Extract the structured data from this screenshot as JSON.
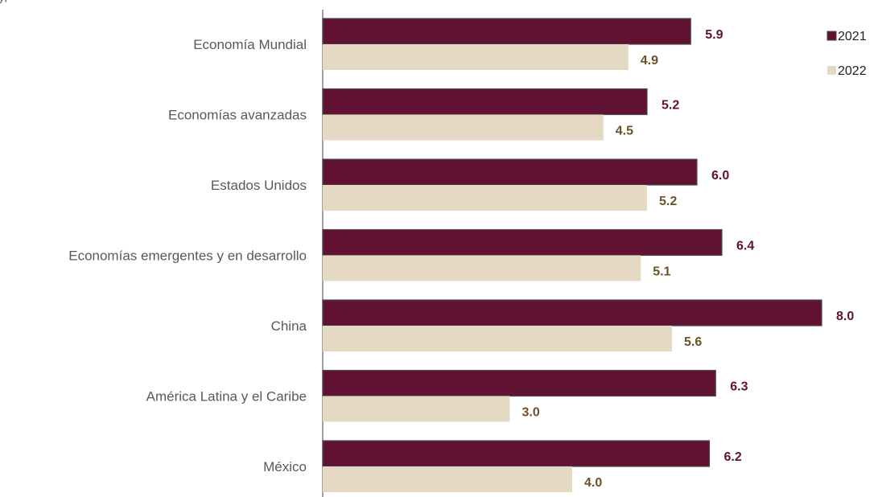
{
  "header": {
    "partial_title": "y, "
  },
  "chart_data": {
    "type": "bar",
    "orientation": "horizontal",
    "categories": [
      "Economía Mundial",
      "Economías avanzadas",
      "Estados Unidos",
      "Economías emergentes y en desarrollo",
      "China",
      "América Latina y el Caribe",
      "México"
    ],
    "series": [
      {
        "name": "2021",
        "color": "#611232",
        "values": [
          5.9,
          5.2,
          6.0,
          6.4,
          8.0,
          6.3,
          6.2
        ],
        "labels": [
          "5.9",
          "5.2",
          "6.0",
          "6.4",
          "8.0",
          "6.3",
          "6.2"
        ]
      },
      {
        "name": "2022",
        "color": "#E6D9C4",
        "label_color": "#6B5228",
        "values": [
          4.9,
          4.5,
          5.2,
          5.1,
          5.6,
          3.0,
          4.0
        ],
        "labels": [
          "4.9",
          "4.5",
          "5.2",
          "5.1",
          "5.6",
          "3.0",
          "4.0"
        ]
      }
    ],
    "xlim": [
      0,
      8.0
    ],
    "grid": false,
    "legend_position": "top-right"
  }
}
